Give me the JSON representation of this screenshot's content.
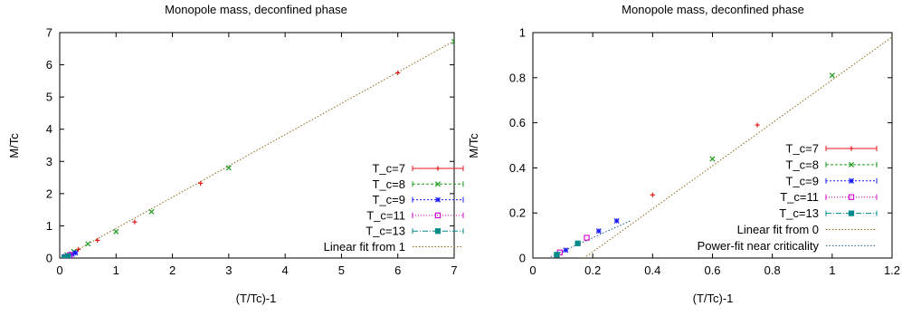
{
  "chart_data": [
    {
      "type": "scatter",
      "title": "Monopole mass, deconfined phase",
      "xlabel": "(T/Tc)-1",
      "ylabel": "M/Tc",
      "xlim": [
        0,
        7
      ],
      "ylim": [
        0,
        7
      ],
      "xticks": [
        "0",
        "1",
        "2",
        "3",
        "4",
        "5",
        "6",
        "7"
      ],
      "yticks": [
        "0",
        "1",
        "2",
        "3",
        "4",
        "5",
        "6",
        "7"
      ],
      "legend_position": "bottom-right",
      "series": [
        {
          "name": "T_c=7",
          "color": "#e41a1c",
          "marker": "plus",
          "x": [
            0.17,
            0.33,
            0.67,
            1.33,
            2.5,
            6.0
          ],
          "y": [
            0.12,
            0.27,
            0.55,
            1.12,
            2.32,
            5.75
          ]
        },
        {
          "name": "T_c=8",
          "color": "#1a9a1a",
          "marker": "cross",
          "x": [
            0.13,
            0.25,
            0.5,
            1.0,
            1.63,
            3.0,
            7.0
          ],
          "y": [
            0.1,
            0.2,
            0.44,
            0.82,
            1.44,
            2.8,
            6.72
          ]
        },
        {
          "name": "T_c=9",
          "color": "#1a1aff",
          "marker": "star",
          "x": [
            0.11,
            0.22,
            0.28
          ],
          "y": [
            0.05,
            0.12,
            0.16
          ]
        },
        {
          "name": "T_c=11",
          "color": "#d000d0",
          "marker": "square",
          "x": [
            0.09,
            0.18
          ],
          "y": [
            0.03,
            0.09
          ]
        },
        {
          "name": "T_c=13",
          "color": "#008b8b",
          "marker": "filled-square",
          "x": [
            0.08,
            0.15
          ],
          "y": [
            0.02,
            0.06
          ]
        }
      ],
      "fits": [
        {
          "name": "Linear fit from 1",
          "color": "#8b6914",
          "slope": 0.97,
          "intercept": -0.05,
          "x_from": 0.05,
          "x_to": 7.0
        }
      ]
    },
    {
      "type": "scatter",
      "title": "Monopole mass, deconfined phase",
      "xlabel": "(T/Tc)-1",
      "ylabel": "M/Tc",
      "xlim": [
        0,
        1.2
      ],
      "ylim": [
        0,
        1
      ],
      "xticks": [
        "0",
        "0.2",
        "0.4",
        "0.6",
        "0.8",
        "1",
        "1.2"
      ],
      "yticks": [
        "0",
        "0.2",
        "0.4",
        "0.6",
        "0.8",
        "1"
      ],
      "legend_position": "bottom-right",
      "series": [
        {
          "name": "T_c=7",
          "color": "#e41a1c",
          "marker": "plus",
          "x": [
            0.4,
            0.75
          ],
          "y": [
            0.28,
            0.59
          ]
        },
        {
          "name": "T_c=8",
          "color": "#1a9a1a",
          "marker": "cross",
          "x": [
            0.6,
            1.0
          ],
          "y": [
            0.44,
            0.81
          ]
        },
        {
          "name": "T_c=9",
          "color": "#1a1aff",
          "marker": "star",
          "x": [
            0.11,
            0.22,
            0.28
          ],
          "y": [
            0.035,
            0.12,
            0.165
          ]
        },
        {
          "name": "T_c=11",
          "color": "#d000d0",
          "marker": "square",
          "x": [
            0.09,
            0.18
          ],
          "y": [
            0.025,
            0.09
          ]
        },
        {
          "name": "T_c=13",
          "color": "#008b8b",
          "marker": "filled-square",
          "x": [
            0.08,
            0.15
          ],
          "y": [
            0.015,
            0.065
          ]
        }
      ],
      "fits": [
        {
          "name": "Linear fit from 0",
          "color": "#8b6914",
          "slope": 0.953,
          "intercept": -0.163,
          "x_from": 0.17,
          "x_to": 1.2
        },
        {
          "name": "Power-fit near criticality",
          "color": "#1c5a8a",
          "slope": 0.6,
          "intercept": -0.03,
          "x_from": 0.05,
          "x_to": 0.33
        }
      ]
    }
  ]
}
